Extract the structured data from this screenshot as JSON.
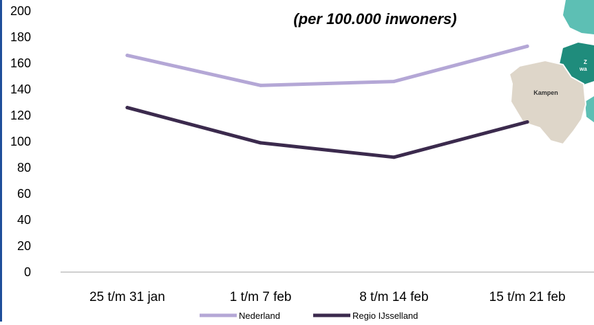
{
  "chart_data": {
    "type": "line",
    "title_subtitle": "(per 100.000 inwoners)",
    "categories": [
      "25 t/m 31 jan",
      "1 t/m 7 feb",
      "8 t/m 14 feb",
      "15 t/m 21 feb"
    ],
    "ylim": [
      0,
      200
    ],
    "yticks": [
      "0",
      "20",
      "40",
      "60",
      "80",
      "100",
      "120",
      "140",
      "160",
      "180",
      "200"
    ],
    "series": [
      {
        "name": "Nederland",
        "values": [
          166,
          143,
          146,
          173
        ],
        "color": "#b4a7d6"
      },
      {
        "name": "Regio IJsselland",
        "values": [
          126,
          99,
          88,
          115
        ],
        "color": "#3b2a4d"
      }
    ],
    "legend": "bottom",
    "grid": false
  },
  "map_inset": {
    "labels": [
      "Kampen",
      "Z",
      "wa"
    ],
    "colors": [
      "#ded6c9",
      "#1f8c7c",
      "#5dbfb4"
    ]
  }
}
